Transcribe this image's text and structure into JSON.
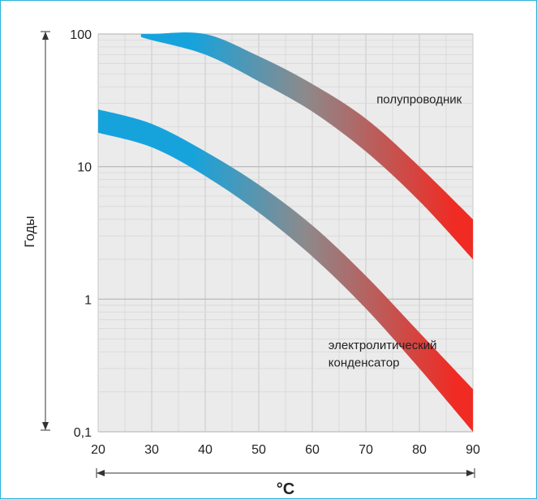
{
  "chart_data": {
    "type": "area",
    "title": "",
    "xlabel": "°C",
    "ylabel": "Годы",
    "xlim": [
      20,
      90
    ],
    "ylim": [
      0.1,
      100
    ],
    "yscale": "log",
    "grid": true,
    "x_ticks": [
      "20",
      "30",
      "40",
      "50",
      "60",
      "70",
      "80",
      "90"
    ],
    "y_ticks": [
      "0,1",
      "1",
      "10",
      "100"
    ],
    "colors": {
      "cool": "#16a3dc",
      "mid": "#8c8a8c",
      "hot": "#ef2b24",
      "grid": "#d7d7d7",
      "plot_bg": "#ebebeb"
    },
    "series": [
      {
        "label": "полупроводник",
        "x": [
          28,
          30,
          40,
          50,
          60,
          70,
          80,
          90
        ],
        "upper": [
          100,
          100,
          100,
          68,
          42,
          23,
          10,
          4
        ],
        "lower": [
          95,
          90,
          70,
          44,
          26,
          13,
          5.5,
          2
        ]
      },
      {
        "label": "электролитический\nконденсатор",
        "x": [
          20,
          30,
          40,
          50,
          60,
          70,
          80,
          90
        ],
        "upper": [
          27,
          21,
          13,
          7.3,
          3.6,
          1.5,
          0.56,
          0.21
        ],
        "lower": [
          18,
          14,
          8.5,
          4.5,
          2.1,
          0.85,
          0.3,
          0.1
        ]
      }
    ],
    "annotations": [
      {
        "text": "полупроводник",
        "x": 72,
        "y": 30
      },
      {
        "text": "электролитический",
        "x": 63,
        "y": 0.42
      },
      {
        "text": "конденсатор",
        "x": 63,
        "y": 0.31
      }
    ]
  }
}
